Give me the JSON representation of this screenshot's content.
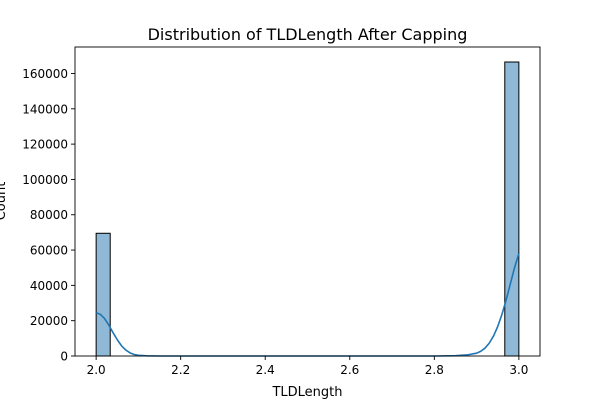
{
  "chart_data": {
    "type": "bar",
    "title": "Distribution of TLDLength After Capping",
    "xlabel": "TLDLength",
    "ylabel": "Count",
    "xlim": [
      1.95,
      3.05
    ],
    "ylim": [
      0,
      175000
    ],
    "x_ticks": [
      "2.0",
      "2.2",
      "2.4",
      "2.6",
      "2.8",
      "3.0"
    ],
    "y_ticks": [
      "0",
      "20000",
      "40000",
      "60000",
      "80000",
      "100000",
      "120000",
      "140000",
      "160000"
    ],
    "bins": [
      {
        "x0": 2.0,
        "x1": 2.0333,
        "count": 69500
      },
      {
        "x0": 2.9667,
        "x1": 3.0,
        "count": 166500
      }
    ],
    "kde": {
      "x": [
        2.0,
        2.01,
        2.02,
        2.03,
        2.04,
        2.05,
        2.06,
        2.07,
        2.08,
        2.09,
        2.1,
        2.12,
        2.15,
        2.2,
        2.3,
        2.5,
        2.7,
        2.8,
        2.85,
        2.88,
        2.9,
        2.91,
        2.92,
        2.93,
        2.94,
        2.95,
        2.96,
        2.97,
        2.98,
        2.99,
        3.0
      ],
      "y": [
        24500,
        23600,
        21200,
        17500,
        13200,
        9200,
        5800,
        3400,
        1800,
        850,
        400,
        100,
        0,
        0,
        0,
        0,
        0,
        0,
        200,
        700,
        1600,
        2700,
        4500,
        7300,
        11300,
        16700,
        23600,
        31800,
        41000,
        50200,
        58000
      ]
    },
    "colors": {
      "bar_fill": "#8fb9d6",
      "bar_edge": "#000000",
      "kde_line": "#1f77b4"
    },
    "grid": false,
    "legend": "none"
  }
}
